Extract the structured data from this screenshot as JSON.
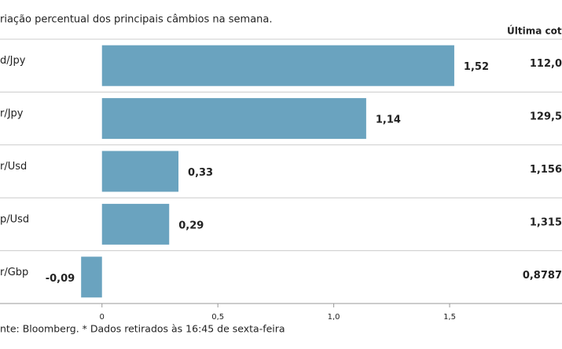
{
  "chart_data": {
    "type": "bar",
    "orientation": "horizontal",
    "title": "riação percentual dos principais câmbios na semana.",
    "table_header": "Última cotaç",
    "categories": [
      "d/Jpy",
      "r/Jpy",
      "r/Usd",
      "p/Usd",
      "r/Gbp"
    ],
    "values": [
      1.52,
      1.14,
      0.33,
      0.29,
      -0.09
    ],
    "value_labels": [
      "1,52",
      "1,14",
      "0,33",
      "0,29",
      "-0,09"
    ],
    "last_quotes": [
      "112,0",
      "129,5",
      "1,156",
      "1,315",
      "0,8787"
    ],
    "color": "#6aa3bf",
    "xlim": [
      -0.44,
      1.7
    ],
    "xticks": [
      0,
      {
        "value": 0.5,
        "label": "0,5"
      },
      {
        "value": 1.0,
        "label": "1,0"
      },
      {
        "value": 1.5,
        "label": "1,5"
      }
    ],
    "footer": "nte: Bloomberg.  * Dados retirados às 16:45 de sexta-feira"
  }
}
